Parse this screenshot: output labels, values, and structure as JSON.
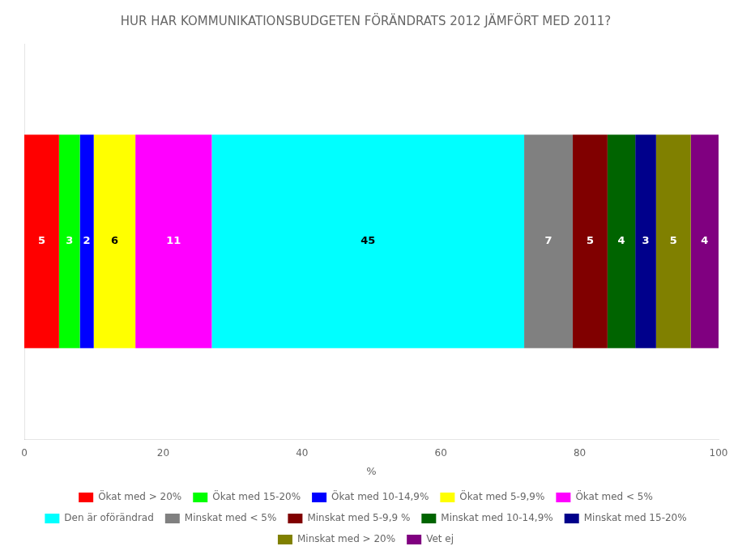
{
  "chart_data": {
    "type": "bar",
    "orientation": "horizontal",
    "stacked": true,
    "title": "HUR HAR KOMMUNIKATIONSBUDGETEN FÖRÄNDRATS 2012 JÄMFÖRT MED 2011?",
    "xlabel": "%",
    "categories": [
      null
    ],
    "series": [
      {
        "name": "Ökat med > 20%",
        "color": "#ff0000",
        "values": [
          5
        ]
      },
      {
        "name": "Ökat med 15-20%",
        "color": "#00ff00",
        "values": [
          3
        ]
      },
      {
        "name": "Ökat med 10-14,9%",
        "color": "#0000ff",
        "values": [
          2
        ]
      },
      {
        "name": "Ökat med 5-9,9%",
        "color": "#ffff00",
        "values": [
          6
        ]
      },
      {
        "name": "Ökat med < 5%",
        "color": "#ff00ff",
        "values": [
          11
        ]
      },
      {
        "name": "Den är oförändrad",
        "color": "#00ffff",
        "values": [
          45
        ]
      },
      {
        "name": "Minskat med < 5%",
        "color": "#808080",
        "values": [
          7
        ]
      },
      {
        "name": "Minskat med 5-9,9 %",
        "color": "#800000",
        "values": [
          5
        ]
      },
      {
        "name": "Minskat med 10-14,9%",
        "color": "#006400",
        "values": [
          4
        ]
      },
      {
        "name": "Minskat med 15-20%",
        "color": "#00008b",
        "values": [
          3
        ]
      },
      {
        "name": "Minskat med > 20%",
        "color": "#808000",
        "values": [
          5
        ]
      },
      {
        "name": "Vet ej",
        "color": "#800080",
        "values": [
          4
        ]
      }
    ],
    "xlim": [
      0,
      100
    ],
    "xticks": [
      0,
      20,
      40,
      60,
      80,
      100
    ],
    "data_labels": true,
    "grid": false,
    "legend": "bottom"
  }
}
